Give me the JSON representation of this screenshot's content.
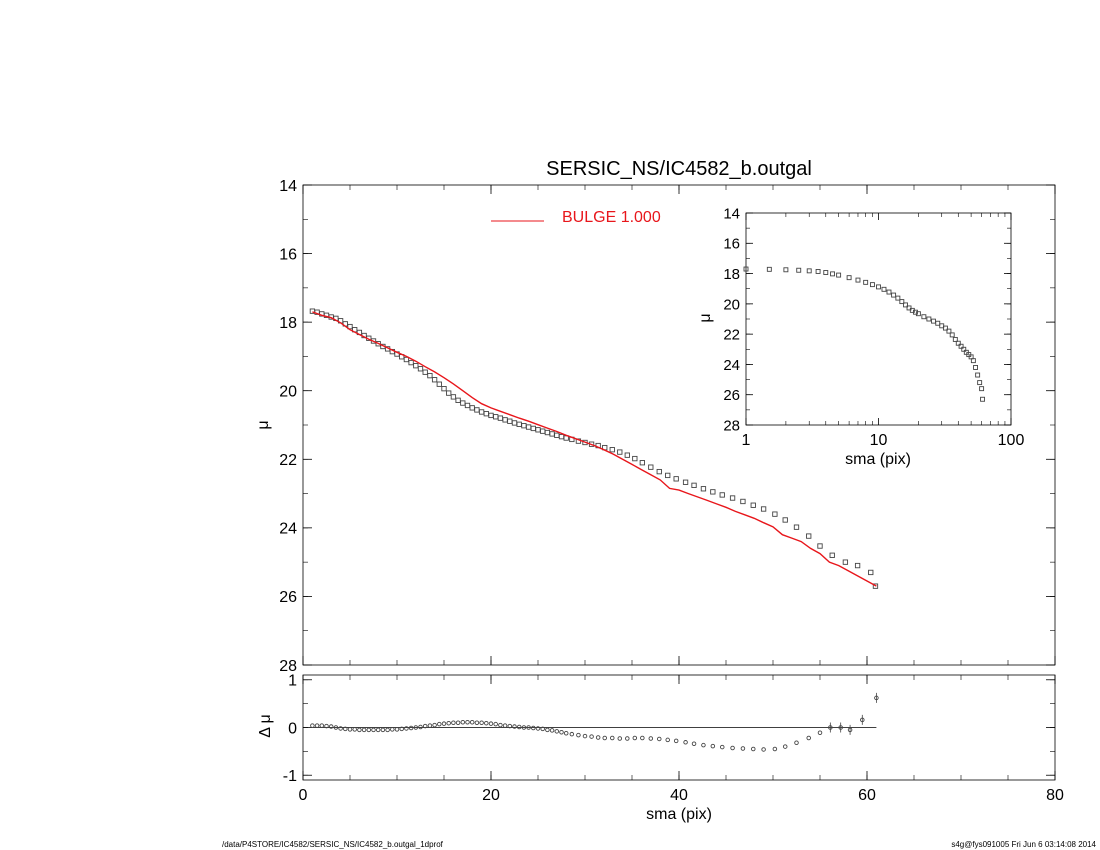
{
  "footer": {
    "left": "/data/P4STORE/IC4582/SERSIC_NS/IC4582_b.outgal_1dprof",
    "right": "s4g@fys091005  Fri Jun  6 03:14:08 2014"
  },
  "colors": {
    "axis": "#000000",
    "model": "#e8161b",
    "points": "#444444",
    "legend_text": "#e8161b"
  },
  "chart_data": [
    {
      "type": "scatter",
      "panel": "main",
      "title": "SERSIC_NS/IC4582_b.outgal",
      "xlabel": "",
      "ylabel": "μ",
      "xlim": [
        0,
        80
      ],
      "ylim": [
        28,
        14
      ],
      "xticks": [
        0,
        20,
        40,
        60,
        80
      ],
      "yticks": [
        14,
        16,
        18,
        20,
        22,
        24,
        26,
        28
      ],
      "xtick_labels_shown": false,
      "legend": {
        "label": "BULGE  1.000",
        "placement": "top-center"
      },
      "series": [
        {
          "name": "",
          "kind": "squares",
          "x": [
            1.0,
            1.5,
            2.0,
            2.5,
            3.0,
            3.5,
            4.0,
            4.5,
            5.0,
            5.5,
            6.0,
            6.5,
            7.0,
            7.5,
            8.0,
            8.5,
            9.0,
            9.5,
            10.0,
            10.5,
            11.0,
            11.5,
            12.0,
            12.5,
            13.0,
            13.5,
            14.0,
            14.5,
            15.0,
            15.5,
            16.0,
            16.5,
            17.0,
            17.5,
            18.0,
            18.5,
            19.0,
            19.5,
            20.0,
            20.5,
            21.0,
            21.5,
            22.0,
            22.5,
            23.0,
            23.5,
            24.0,
            24.5,
            25.0,
            25.5,
            26.0,
            26.5,
            27.0,
            27.5,
            28.0,
            28.6,
            29.3,
            30.0,
            30.7,
            31.4,
            32.1,
            32.9,
            33.7,
            34.5,
            35.3,
            36.1,
            37.0,
            37.9,
            38.8,
            39.7,
            40.7,
            41.6,
            42.6,
            43.6,
            44.6,
            45.7,
            46.8,
            47.9,
            49.0,
            50.2,
            51.3,
            52.5,
            53.8,
            55.0,
            56.3,
            57.7,
            59.0,
            60.4,
            60.9
          ],
          "y": [
            17.68,
            17.71,
            17.76,
            17.8,
            17.85,
            17.89,
            17.96,
            18.05,
            18.13,
            18.22,
            18.3,
            18.39,
            18.47,
            18.55,
            18.63,
            18.71,
            18.78,
            18.86,
            18.93,
            19.01,
            19.09,
            19.18,
            19.27,
            19.36,
            19.46,
            19.56,
            19.68,
            19.81,
            19.94,
            20.07,
            20.18,
            20.28,
            20.36,
            20.43,
            20.5,
            20.56,
            20.62,
            20.67,
            20.72,
            20.76,
            20.8,
            20.85,
            20.89,
            20.94,
            20.98,
            21.02,
            21.06,
            21.1,
            21.14,
            21.18,
            21.22,
            21.26,
            21.3,
            21.34,
            21.38,
            21.42,
            21.47,
            21.51,
            21.56,
            21.6,
            21.66,
            21.72,
            21.79,
            21.88,
            21.98,
            22.1,
            22.23,
            22.36,
            22.47,
            22.57,
            22.67,
            22.76,
            22.86,
            22.95,
            23.04,
            23.13,
            23.23,
            23.34,
            23.45,
            23.6,
            23.77,
            23.98,
            24.24,
            24.53,
            24.8,
            25.0,
            25.1,
            25.3,
            25.7
          ]
        },
        {
          "name": "BULGE  1.000",
          "kind": "line",
          "x": [
            1,
            2,
            3,
            4,
            5,
            6,
            7,
            8,
            9,
            10,
            11,
            12,
            13,
            14,
            15,
            16,
            17,
            18,
            19,
            20,
            21,
            22,
            23,
            24,
            25,
            26,
            27,
            28,
            29,
            30,
            31,
            32,
            33,
            34,
            35,
            36,
            37,
            38,
            39,
            40,
            41,
            42,
            43,
            44,
            45,
            46,
            47,
            48,
            49,
            50,
            51,
            52,
            53,
            54,
            55,
            56,
            57,
            58,
            59,
            60,
            61
          ],
          "y": [
            17.7,
            17.8,
            17.87,
            18.02,
            18.22,
            18.36,
            18.5,
            18.62,
            18.75,
            18.88,
            19.0,
            19.14,
            19.3,
            19.45,
            19.62,
            19.8,
            20.0,
            20.2,
            20.38,
            20.5,
            20.6,
            20.7,
            20.8,
            20.89,
            20.99,
            21.09,
            21.19,
            21.3,
            21.4,
            21.5,
            21.6,
            21.72,
            21.85,
            22.0,
            22.15,
            22.3,
            22.45,
            22.6,
            22.85,
            22.9,
            23.0,
            23.1,
            23.2,
            23.3,
            23.4,
            23.52,
            23.62,
            23.72,
            23.85,
            23.97,
            24.2,
            24.3,
            24.4,
            24.6,
            24.75,
            25.0,
            25.1,
            25.25,
            25.4,
            25.55,
            25.7
          ]
        }
      ]
    },
    {
      "type": "scatter",
      "panel": "inset",
      "title": "",
      "xlabel": "sma (pix)",
      "ylabel": "μ",
      "xscale": "log",
      "xlim": [
        1,
        100
      ],
      "ylim": [
        28,
        14
      ],
      "xticks": [
        1,
        10,
        100
      ],
      "yticks": [
        14,
        16,
        18,
        20,
        22,
        24,
        26,
        28
      ],
      "series": [
        {
          "name": "",
          "kind": "squares",
          "x": [
            1.0,
            1.5,
            2.0,
            2.5,
            3.0,
            3.5,
            4.0,
            4.5,
            5.0,
            6.0,
            7.0,
            8.0,
            9.0,
            10.0,
            11.0,
            12.0,
            13.0,
            14.0,
            15.0,
            16.0,
            17.0,
            18.0,
            19.0,
            20.0,
            22.0,
            24.0,
            26.0,
            28.0,
            30.0,
            32.0,
            34.0,
            36.0,
            38.0,
            40.0,
            42.0,
            44.0,
            46.0,
            48.0,
            50.0,
            52.0,
            54.0,
            56.0,
            58.0,
            60.0,
            61.0
          ],
          "y": [
            17.7,
            17.72,
            17.75,
            17.78,
            17.82,
            17.86,
            17.93,
            18.02,
            18.1,
            18.27,
            18.43,
            18.58,
            18.73,
            18.88,
            19.04,
            19.22,
            19.42,
            19.62,
            19.85,
            20.07,
            20.27,
            20.43,
            20.55,
            20.65,
            20.85,
            21.0,
            21.14,
            21.28,
            21.45,
            21.6,
            21.8,
            22.05,
            22.35,
            22.6,
            22.8,
            23.0,
            23.2,
            23.35,
            23.5,
            23.75,
            24.2,
            24.7,
            25.2,
            25.6,
            26.3
          ]
        }
      ]
    },
    {
      "type": "scatter",
      "panel": "residual",
      "title": "",
      "xlabel": "sma (pix)",
      "ylabel": "Δ μ",
      "xlim": [
        0,
        80
      ],
      "ylim": [
        -1.1,
        1.1
      ],
      "xticks": [
        0,
        20,
        40,
        60,
        80
      ],
      "yticks": [
        -1,
        0,
        1
      ],
      "series": [
        {
          "name": "",
          "kind": "circles",
          "x": [
            1.0,
            1.5,
            2.0,
            2.5,
            3.0,
            3.5,
            4.0,
            4.5,
            5.0,
            5.5,
            6.0,
            6.5,
            7.0,
            7.5,
            8.0,
            8.5,
            9.0,
            9.5,
            10.0,
            10.5,
            11.0,
            11.5,
            12.0,
            12.5,
            13.0,
            13.5,
            14.0,
            14.5,
            15.0,
            15.5,
            16.0,
            16.5,
            17.0,
            17.5,
            18.0,
            18.5,
            19.0,
            19.5,
            20.0,
            20.5,
            21.0,
            21.5,
            22.0,
            22.5,
            23.0,
            23.5,
            24.0,
            24.5,
            25.0,
            25.5,
            26.0,
            26.5,
            27.0,
            27.5,
            28.0,
            28.6,
            29.3,
            30.0,
            30.7,
            31.4,
            32.1,
            32.9,
            33.7,
            34.5,
            35.3,
            36.1,
            37.0,
            37.9,
            38.8,
            39.7,
            40.7,
            41.6,
            42.6,
            43.6,
            44.6,
            45.7,
            46.8,
            47.9,
            49.0,
            50.2,
            51.3,
            52.5,
            53.8,
            55.0,
            56.1,
            57.2,
            58.2,
            59.5,
            61.0
          ],
          "y": [
            0.04,
            0.04,
            0.04,
            0.03,
            0.02,
            0.0,
            -0.02,
            -0.03,
            -0.04,
            -0.04,
            -0.05,
            -0.05,
            -0.05,
            -0.05,
            -0.05,
            -0.05,
            -0.05,
            -0.04,
            -0.04,
            -0.03,
            -0.02,
            -0.01,
            0.0,
            0.01,
            0.03,
            0.04,
            0.05,
            0.07,
            0.08,
            0.09,
            0.1,
            0.1,
            0.11,
            0.11,
            0.11,
            0.1,
            0.1,
            0.09,
            0.08,
            0.07,
            0.05,
            0.04,
            0.03,
            0.02,
            0.01,
            0.0,
            0.0,
            -0.01,
            -0.02,
            -0.03,
            -0.05,
            -0.06,
            -0.08,
            -0.1,
            -0.12,
            -0.14,
            -0.16,
            -0.18,
            -0.19,
            -0.21,
            -0.22,
            -0.22,
            -0.23,
            -0.23,
            -0.22,
            -0.22,
            -0.23,
            -0.24,
            -0.26,
            -0.28,
            -0.31,
            -0.34,
            -0.37,
            -0.39,
            -0.41,
            -0.43,
            -0.44,
            -0.45,
            -0.46,
            -0.45,
            -0.4,
            -0.32,
            -0.22,
            -0.11,
            0.0,
            0.0,
            -0.05,
            0.16,
            0.62
          ]
        }
      ]
    }
  ]
}
